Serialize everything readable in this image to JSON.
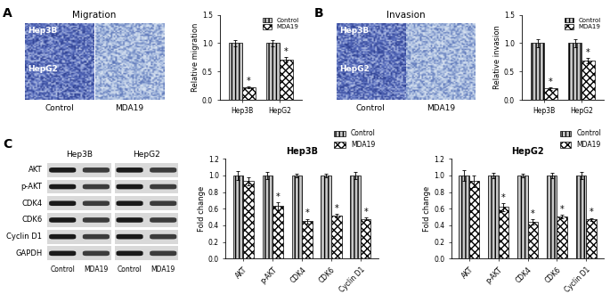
{
  "images": {
    "micrographs": [
      {
        "panel_label": "A",
        "title": "Migration",
        "rows": [
          "Hep3B",
          "HepG2"
        ],
        "columns": [
          "Control",
          "MDA19"
        ]
      },
      {
        "panel_label": "B",
        "title": "Invasion",
        "rows": [
          "Hep3B",
          "HepG2"
        ],
        "columns": [
          "Control",
          "MDA19"
        ]
      }
    ],
    "blot": {
      "panel_label": "C",
      "groups": [
        "Hep3B",
        "HepG2"
      ],
      "rows": [
        "AKT",
        "p-AKT",
        "CDK4",
        "CDK6",
        "Cyclin D1",
        "GAPDH"
      ],
      "lanes": [
        "Control",
        "MDA19",
        "Control",
        "MDA19"
      ]
    }
  },
  "chart_data": [
    {
      "type": "bar",
      "ylabel": "Relative migration",
      "categories": [
        "Hep3B",
        "HepG2"
      ],
      "series": [
        {
          "name": "Control",
          "color": "#c8c8c8",
          "values": [
            1.0,
            1.0
          ],
          "errors": [
            0.06,
            0.06
          ]
        },
        {
          "name": "MDA19",
          "color": "#ffffff",
          "values": [
            0.22,
            0.71
          ],
          "errors": [
            0.02,
            0.05
          ],
          "annotations": [
            "*",
            "*"
          ]
        }
      ],
      "ylim": [
        0,
        1.5
      ],
      "yticks": [
        {
          "value": 0,
          "label": "0.0"
        },
        {
          "value": 0.5,
          "label": "0.5"
        },
        {
          "value": 1.0,
          "label": "1.0"
        },
        {
          "value": 1.5,
          "label": "1.5"
        }
      ],
      "legend": "upper right"
    },
    {
      "type": "bar",
      "ylabel": "Relative invasion",
      "categories": [
        "Hep3B",
        "HepG2"
      ],
      "series": [
        {
          "name": "Control",
          "color": "#c8c8c8",
          "values": [
            1.0,
            1.0
          ],
          "errors": [
            0.07,
            0.07
          ]
        },
        {
          "name": "MDA19",
          "color": "#ffffff",
          "values": [
            0.2,
            0.69
          ],
          "errors": [
            0.02,
            0.05
          ],
          "annotations": [
            "*",
            "*"
          ]
        }
      ],
      "ylim": [
        0,
        1.5
      ],
      "yticks": [
        {
          "value": 0,
          "label": "0.0"
        },
        {
          "value": 0.5,
          "label": "0.5"
        },
        {
          "value": 1.0,
          "label": "1.0"
        },
        {
          "value": 1.5,
          "label": "1.5"
        }
      ],
      "legend": "upper right"
    },
    {
      "type": "bar",
      "title": "Hep3B",
      "ylabel": "Fold change",
      "categories": [
        "AKT",
        "p-AKT",
        "CDK4",
        "CDK6",
        "Cyclin D1"
      ],
      "series": [
        {
          "name": "Control",
          "color": "#c8c8c8",
          "values": [
            1.0,
            1.0,
            1.0,
            1.0,
            1.0
          ],
          "errors": [
            0.05,
            0.04,
            0.02,
            0.02,
            0.04
          ]
        },
        {
          "name": "MDA19",
          "color": "#ffffff",
          "values": [
            0.93,
            0.63,
            0.45,
            0.52,
            0.48
          ],
          "errors": [
            0.05,
            0.05,
            0.03,
            0.02,
            0.02
          ],
          "annotations": [
            null,
            "*",
            "*",
            "*",
            "*"
          ]
        }
      ],
      "ylim": [
        0,
        1.2
      ],
      "yticks": [
        {
          "value": 0,
          "label": "0.0"
        },
        {
          "value": 0.2,
          "label": "0.2"
        },
        {
          "value": 0.4,
          "label": "0.4"
        },
        {
          "value": 0.6,
          "label": "0.6"
        },
        {
          "value": 0.8,
          "label": "0.8"
        },
        {
          "value": 1.0,
          "label": "1.0"
        },
        {
          "value": 1.2,
          "label": "1.2"
        }
      ],
      "legend": "upper right"
    },
    {
      "type": "bar",
      "title": "HepG2",
      "ylabel": "Fold change",
      "categories": [
        "AKT",
        "p-AKT",
        "CDK4",
        "CDK6",
        "Cyclin D1"
      ],
      "series": [
        {
          "name": "Control",
          "color": "#c8c8c8",
          "values": [
            1.0,
            1.0,
            1.0,
            1.0,
            1.0
          ],
          "errors": [
            0.06,
            0.03,
            0.02,
            0.03,
            0.04
          ]
        },
        {
          "name": "MDA19",
          "color": "#ffffff",
          "values": [
            0.93,
            0.62,
            0.44,
            0.51,
            0.47
          ],
          "errors": [
            0.07,
            0.05,
            0.03,
            0.02,
            0.02
          ],
          "annotations": [
            null,
            "*",
            "*",
            "*",
            "*"
          ]
        }
      ],
      "ylim": [
        0,
        1.2
      ],
      "yticks": [
        {
          "value": 0,
          "label": "0.0"
        },
        {
          "value": 0.2,
          "label": "0.2"
        },
        {
          "value": 0.4,
          "label": "0.4"
        },
        {
          "value": 0.6,
          "label": "0.6"
        },
        {
          "value": 0.8,
          "label": "0.8"
        },
        {
          "value": 1.0,
          "label": "1.0"
        },
        {
          "value": 1.2,
          "label": "1.2"
        }
      ],
      "legend": "upper right"
    }
  ]
}
